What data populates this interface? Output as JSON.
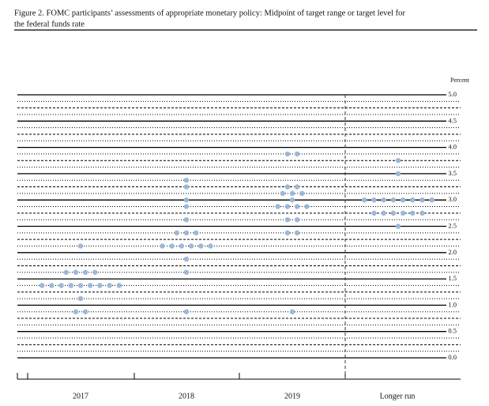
{
  "chart_data": {
    "type": "dot",
    "title": "Figure 2. FOMC participants’ assessments of appropriate monetary policy: Midpoint of target range or target level for",
    "subtitle": "the federal funds rate",
    "y_axis_label": "Percent",
    "categories": [
      "2017",
      "2018",
      "2019",
      "Longer run"
    ],
    "values": [
      [
        2.125,
        1.625,
        1.625,
        1.625,
        1.625,
        1.375,
        1.375,
        1.375,
        1.375,
        1.375,
        1.375,
        1.375,
        1.375,
        1.375,
        1.125,
        0.875,
        0.875
      ],
      [
        3.375,
        3.25,
        3.0,
        2.875,
        2.625,
        2.375,
        2.375,
        2.375,
        2.125,
        2.125,
        2.125,
        2.125,
        2.125,
        2.125,
        1.875,
        1.625,
        0.875
      ],
      [
        3.875,
        3.875,
        3.25,
        3.25,
        3.125,
        3.125,
        3.125,
        3.0,
        2.875,
        2.875,
        2.875,
        2.875,
        2.625,
        2.625,
        2.375,
        2.375,
        0.875
      ],
      [
        3.75,
        3.5,
        3.0,
        3.0,
        3.0,
        3.0,
        3.0,
        3.0,
        3.0,
        3.0,
        2.75,
        2.75,
        2.75,
        2.75,
        2.75,
        2.75,
        2.5
      ]
    ],
    "color": "#9db8d6",
    "ylim": [
      0,
      5
    ],
    "yticks": [
      {
        "value": 0,
        "label": "0.0"
      },
      0.5,
      {
        "value": 1,
        "label": "1.0"
      },
      1.5,
      {
        "value": 2,
        "label": "2.0"
      },
      2.5,
      {
        "value": 3,
        "label": "3.0"
      },
      3.5,
      {
        "value": 4,
        "label": "4.0"
      },
      4.5,
      {
        "value": 5,
        "label": "5.0"
      }
    ],
    "grid": true
  }
}
